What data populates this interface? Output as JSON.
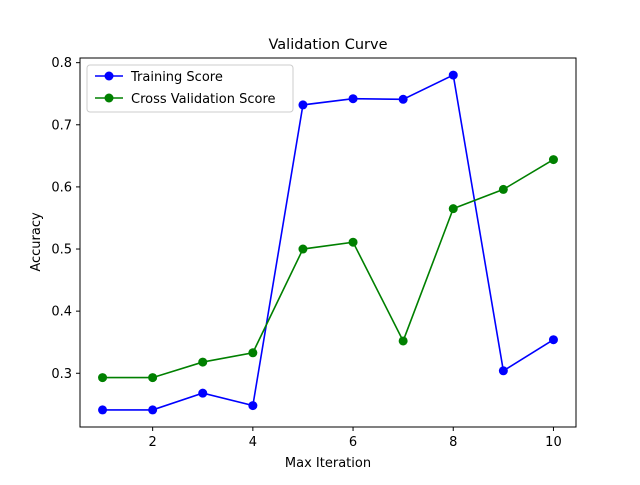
{
  "chart_data": {
    "type": "line",
    "title": "Validation Curve",
    "xlabel": "Max Iteration",
    "ylabel": "Accuracy",
    "x": [
      1,
      2,
      3,
      4,
      5,
      6,
      7,
      8,
      9,
      10
    ],
    "xlim": [
      0.55,
      10.45
    ],
    "ylim": [
      0.2135,
      0.8075
    ],
    "xticks": [
      2,
      4,
      6,
      8,
      10
    ],
    "xtick_labels": [
      "2",
      "4",
      "6",
      "8",
      "10"
    ],
    "yticks": [
      0.3,
      0.4,
      0.5,
      0.6,
      0.7,
      0.8
    ],
    "ytick_labels": [
      "0.3",
      "0.4",
      "0.5",
      "0.6",
      "0.7",
      "0.8"
    ],
    "grid": false,
    "legend_position": "upper-left",
    "series": [
      {
        "name": "Training Score",
        "color": "#0000ff",
        "marker": "circle",
        "values": [
          0.241,
          0.241,
          0.268,
          0.248,
          0.732,
          0.742,
          0.741,
          0.78,
          0.304,
          0.354
        ]
      },
      {
        "name": "Cross Validation Score",
        "color": "#008000",
        "marker": "circle",
        "values": [
          0.293,
          0.293,
          0.318,
          0.333,
          0.5,
          0.511,
          0.352,
          0.565,
          0.596,
          0.644
        ]
      }
    ]
  }
}
